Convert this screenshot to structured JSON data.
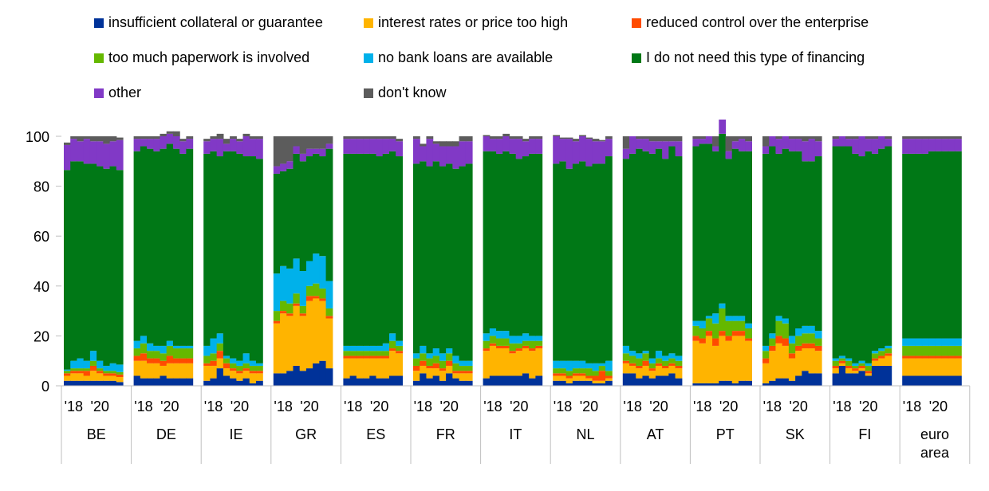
{
  "chart_data": {
    "type": "bar",
    "stacked": true,
    "ylim": [
      0,
      100
    ],
    "yticks": [
      0,
      20,
      40,
      60,
      80,
      100
    ],
    "grid": false,
    "legend_position": "top",
    "period_labels": [
      "'18",
      "'20"
    ],
    "categories": [
      "BE",
      "DE",
      "IE",
      "GR",
      "ES",
      "FR",
      "IT",
      "NL",
      "AT",
      "PT",
      "SK",
      "FI",
      "euro area"
    ],
    "series": [
      {
        "name": "insufficient collateral or guarantee",
        "color": "#003299",
        "values": [
          [
            2,
            2,
            2,
            2,
            2,
            2,
            2,
            2,
            1.5
          ],
          [
            4,
            3,
            3,
            3,
            4,
            3,
            3,
            3,
            3
          ],
          [
            2,
            3,
            7,
            4,
            3,
            2,
            3,
            1,
            2
          ],
          [
            5,
            5,
            6,
            8,
            6,
            7,
            9,
            10,
            7
          ],
          [
            3,
            4,
            3,
            3,
            4,
            3,
            3,
            4,
            4
          ],
          [
            2,
            5,
            3,
            4,
            2,
            5,
            3,
            2,
            2
          ],
          [
            3,
            4,
            4,
            4,
            4,
            4,
            5,
            3,
            4
          ],
          [
            2,
            2,
            1,
            2,
            2,
            2,
            1,
            1,
            2
          ],
          [
            5,
            5,
            3,
            4,
            3,
            4,
            4,
            5,
            3
          ],
          [
            1,
            1,
            1,
            1,
            2,
            2,
            1,
            2,
            2
          ],
          [
            1,
            2,
            3,
            3,
            2,
            4,
            6,
            5,
            5
          ],
          [
            5,
            8,
            5,
            5,
            6,
            4,
            8,
            8,
            8
          ],
          [
            4,
            4,
            4,
            4,
            4,
            4,
            4,
            4,
            4
          ]
        ]
      },
      {
        "name": "interest rates or price too high",
        "color": "#FFB400",
        "values": [
          [
            2,
            3,
            3,
            2,
            4,
            3,
            2,
            2,
            2
          ],
          [
            6,
            7,
            6,
            6,
            4,
            6,
            6,
            6,
            6
          ],
          [
            6,
            5,
            4,
            3,
            3,
            3,
            3,
            4,
            3
          ],
          [
            20,
            24,
            22,
            24,
            22,
            27,
            26,
            24,
            20
          ],
          [
            8,
            7,
            8,
            8,
            7,
            8,
            8,
            10,
            9
          ],
          [
            4,
            3,
            4,
            3,
            4,
            3,
            2,
            3,
            3
          ],
          [
            11,
            12,
            11,
            11,
            9,
            10,
            10,
            11,
            11
          ],
          [
            2,
            2,
            2,
            2,
            2,
            1,
            1,
            1,
            1
          ],
          [
            4,
            3,
            4,
            4,
            3,
            4,
            3,
            3,
            4
          ],
          [
            17,
            16,
            19,
            15,
            18,
            16,
            19,
            18,
            16
          ],
          [
            8,
            12,
            14,
            13,
            9,
            10,
            9,
            10,
            9
          ],
          [
            2,
            1,
            2,
            1,
            1,
            1,
            2,
            3,
            4
          ],
          [
            7,
            7,
            7,
            7,
            7,
            7,
            7,
            7,
            7
          ]
        ]
      },
      {
        "name": "reduced control over the enterprise",
        "color": "#FF4B00",
        "values": [
          [
            1,
            1,
            1,
            2,
            2,
            1,
            1,
            1,
            1
          ],
          [
            2,
            3,
            2,
            2,
            2,
            3,
            2,
            2,
            2
          ],
          [
            1,
            2,
            3,
            2,
            1,
            1,
            1,
            1,
            1
          ],
          [
            1,
            1,
            1,
            1,
            1,
            2,
            1,
            1,
            1
          ],
          [
            1,
            1,
            1,
            1,
            1,
            1,
            1,
            1,
            1
          ],
          [
            2,
            2,
            1,
            2,
            1,
            2,
            1,
            1,
            1
          ],
          [
            1,
            1,
            1,
            1,
            1,
            1,
            1,
            1,
            1
          ],
          [
            1,
            1,
            1,
            1,
            1,
            1,
            2,
            4,
            1
          ],
          [
            1,
            1,
            1,
            2,
            1,
            1,
            1,
            1,
            1
          ],
          [
            2,
            2,
            2,
            3,
            2,
            2,
            2,
            2,
            1
          ],
          [
            2,
            2,
            3,
            3,
            2,
            2,
            2,
            2,
            2
          ],
          [
            1,
            1,
            1,
            1,
            1,
            1,
            1,
            1,
            1
          ],
          [
            1,
            1,
            1,
            1,
            1,
            1,
            1,
            1,
            1
          ]
        ]
      },
      {
        "name": "too much paperwork is involved",
        "color": "#65B800",
        "values": [
          [
            1,
            1,
            1,
            1,
            2,
            1,
            1,
            1,
            1
          ],
          [
            3,
            4,
            3,
            3,
            3,
            4,
            4,
            4,
            4
          ],
          [
            3,
            3,
            3,
            2,
            2,
            2,
            2,
            2,
            2
          ],
          [
            4,
            4,
            4,
            4,
            3,
            4,
            5,
            4,
            3
          ],
          [
            2,
            2,
            2,
            2,
            2,
            2,
            2,
            3,
            2
          ],
          [
            3,
            3,
            3,
            3,
            3,
            3,
            3,
            2,
            2
          ],
          [
            3,
            3,
            3,
            3,
            3,
            2,
            2,
            3,
            2
          ],
          [
            2,
            2,
            2,
            2,
            2,
            3,
            2,
            2,
            2
          ],
          [
            3,
            3,
            3,
            3,
            2,
            2,
            2,
            2,
            2
          ],
          [
            4,
            4,
            5,
            6,
            9,
            6,
            4,
            4,
            4
          ],
          [
            3,
            3,
            6,
            6,
            4,
            4,
            4,
            4,
            3
          ],
          [
            2,
            1,
            2,
            1,
            1,
            2,
            2,
            2,
            2
          ],
          [
            4,
            4,
            4,
            4,
            4,
            4,
            4,
            4,
            4
          ]
        ]
      },
      {
        "name": "no bank loans are available",
        "color": "#00B1EA",
        "values": [
          [
            0.5,
            3,
            4,
            3,
            4,
            3,
            2,
            3,
            3
          ],
          [
            3,
            3,
            3,
            2,
            3,
            2,
            1,
            1,
            1
          ],
          [
            4,
            6,
            4,
            1,
            2,
            2,
            4,
            2,
            1
          ],
          [
            15,
            14,
            14,
            14,
            14,
            10,
            12,
            13,
            11
          ],
          [
            2,
            2,
            2,
            2,
            2,
            2,
            3,
            3,
            2
          ],
          [
            2,
            3,
            2,
            3,
            3,
            2,
            3,
            2,
            2
          ],
          [
            3,
            3,
            3,
            3,
            3,
            3,
            3,
            2,
            2
          ],
          [
            3,
            3,
            4,
            3,
            3,
            2,
            3,
            1,
            4
          ],
          [
            3,
            2,
            2,
            1,
            2,
            3,
            2,
            2,
            2
          ],
          [
            2,
            3,
            1,
            4,
            2,
            2,
            2,
            2,
            2
          ],
          [
            2,
            2,
            2,
            2,
            3,
            3,
            3,
            3,
            3
          ],
          [
            1,
            1,
            1,
            1,
            1,
            1,
            1,
            1,
            1
          ],
          [
            3,
            3,
            3,
            3,
            3,
            3,
            3,
            3,
            3
          ]
        ]
      },
      {
        "name": "I do not need this type of financing",
        "color": "#007816",
        "values": [
          [
            80,
            80,
            79,
            79,
            75,
            78,
            79,
            79,
            78
          ],
          [
            76,
            76,
            78,
            78,
            79,
            79,
            79,
            77,
            79
          ],
          [
            77,
            75,
            71,
            82,
            83,
            83,
            79,
            82,
            82
          ],
          [
            40,
            38,
            40,
            42,
            44,
            42,
            40,
            40,
            53
          ],
          [
            77,
            77,
            77,
            77,
            77,
            76,
            76,
            73,
            74
          ],
          [
            76,
            74,
            75,
            75,
            75,
            74,
            75,
            78,
            79
          ],
          [
            73,
            71,
            71,
            72,
            73,
            71,
            71,
            73,
            73
          ],
          [
            79,
            80,
            77,
            79,
            80,
            79,
            80,
            80,
            82
          ],
          [
            75,
            79,
            82,
            80,
            82,
            81,
            79,
            83,
            80
          ],
          [
            70,
            71,
            69,
            65,
            68,
            63,
            67,
            66,
            69
          ],
          [
            77,
            75,
            65,
            68,
            74,
            71,
            66,
            66,
            70
          ],
          [
            85,
            84,
            85,
            84,
            82,
            85,
            79,
            80,
            80
          ],
          [
            74,
            74,
            74,
            74,
            75,
            75,
            75,
            75,
            75
          ]
        ]
      },
      {
        "name": "other",
        "color": "#8139C6",
        "values": [
          [
            10,
            9,
            8,
            10,
            9,
            10,
            10,
            10,
            12
          ],
          [
            5,
            3,
            4,
            5,
            5,
            4,
            5,
            5,
            4
          ],
          [
            5,
            5,
            7,
            3,
            5,
            5,
            8,
            7,
            8
          ],
          [
            3,
            3,
            3,
            3,
            3,
            3,
            2,
            3,
            2
          ],
          [
            6,
            6,
            6,
            6,
            6,
            7,
            6,
            5,
            6
          ],
          [
            10,
            6,
            11,
            7,
            8,
            7,
            9,
            10,
            9
          ],
          [
            6,
            5,
            6,
            6,
            6,
            8,
            6,
            6,
            6
          ],
          [
            11,
            9,
            12,
            9,
            10,
            11,
            9,
            9,
            7
          ],
          [
            4,
            7,
            4,
            5,
            5,
            3,
            7,
            2,
            6
          ],
          [
            3,
            2,
            3,
            2,
            6,
            3,
            3,
            5,
            4
          ],
          [
            3,
            4,
            6,
            5,
            5,
            5,
            8,
            9,
            6
          ],
          [
            3,
            4,
            3,
            6,
            8,
            5,
            6,
            5,
            3
          ],
          [
            6,
            6,
            6,
            6,
            5,
            5,
            5,
            5,
            5
          ]
        ]
      },
      {
        "name": "don't know",
        "color": "#5C5C5C",
        "values": [
          [
            1,
            1,
            2,
            1,
            2,
            2,
            3,
            2,
            1
          ],
          [
            1,
            1,
            1,
            1,
            1,
            1,
            2,
            1,
            1
          ],
          [
            1,
            1,
            2,
            2,
            1,
            1,
            1,
            1,
            1
          ],
          [
            12,
            11,
            10,
            4,
            7,
            5,
            5,
            5,
            3
          ],
          [
            1,
            1,
            1,
            1,
            1,
            1,
            1,
            1,
            1
          ],
          [
            1,
            1,
            1,
            1,
            2,
            2,
            2,
            2,
            2
          ],
          [
            0.5,
            1,
            1,
            1,
            1,
            1,
            1,
            1,
            1
          ],
          [
            0.5,
            0.5,
            0.5,
            1,
            0.5,
            0.5,
            1,
            0.5,
            1
          ],
          [
            5,
            0,
            1,
            1,
            2,
            2,
            2,
            2,
            2
          ],
          [
            1,
            1,
            0,
            4,
            1,
            6,
            2,
            1,
            2
          ],
          [
            4,
            0,
            1,
            0,
            1,
            1,
            2,
            1,
            2
          ],
          [
            1,
            0,
            1,
            1,
            0,
            1,
            1,
            0,
            1
          ],
          [
            1,
            1,
            1,
            1,
            1,
            1,
            1,
            1,
            1
          ]
        ]
      }
    ]
  }
}
